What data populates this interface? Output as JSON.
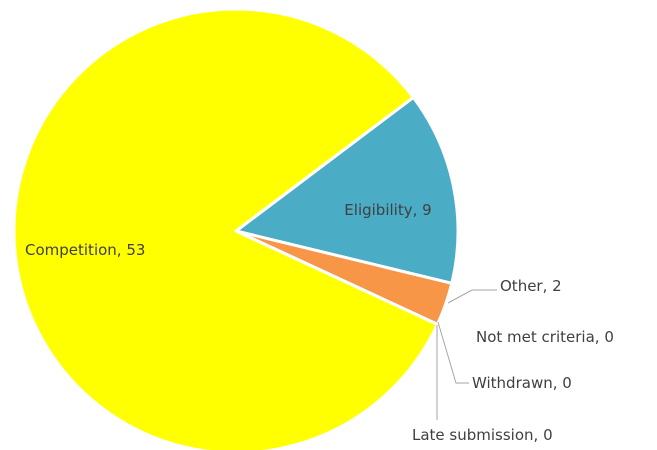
{
  "chart_data": {
    "type": "pie",
    "categories": [
      "Eligibility",
      "Other",
      "Not met criteria",
      "Withdrawn",
      "Late submission",
      "Competition"
    ],
    "values": [
      9,
      2,
      0,
      0,
      0,
      53
    ],
    "colors": [
      "#4bacc6",
      "#f79646",
      "#9bbb59",
      "#8064a2",
      "#c0504d",
      "#ffff00"
    ]
  }
}
